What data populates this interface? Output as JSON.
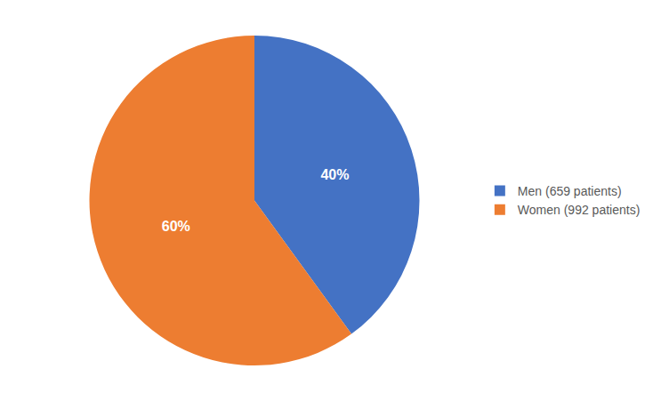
{
  "chart_data": {
    "type": "pie",
    "categories": [
      "Men (659 patients)",
      "Women (992 patients)"
    ],
    "values": [
      40,
      60
    ],
    "value_labels": [
      "40%",
      "60%"
    ],
    "colors": [
      "#4472C4",
      "#ED7D31"
    ],
    "data_labels": true,
    "legend": "right"
  }
}
